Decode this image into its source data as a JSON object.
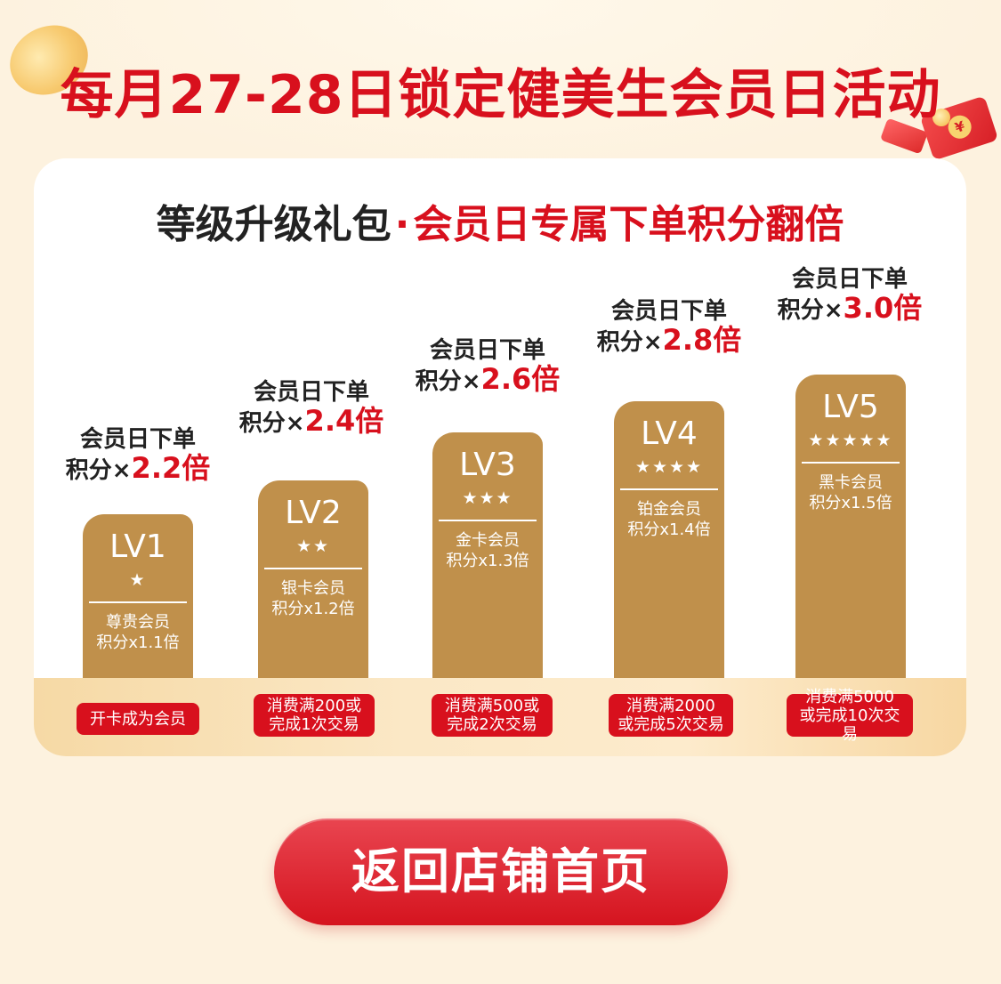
{
  "headline": "每月27-28日锁定健美生会员日活动",
  "card": {
    "title_main": "等级升级礼包",
    "title_sep": "·",
    "title_highlight": "会员日专属下单积分翻倍"
  },
  "levels": [
    {
      "label_line1": "会员日下单",
      "label_prefix": "积分×",
      "label_mult": "2.2倍",
      "lv": "LV1",
      "stars": "★",
      "tier_name": "尊贵会员",
      "tier_points": "积分x1.1倍",
      "requirement": "开卡成为会员"
    },
    {
      "label_line1": "会员日下单",
      "label_prefix": "积分×",
      "label_mult": "2.4倍",
      "lv": "LV2",
      "stars": "★★",
      "tier_name": "银卡会员",
      "tier_points": "积分x1.2倍",
      "requirement": "消费满200或\n完成1次交易"
    },
    {
      "label_line1": "会员日下单",
      "label_prefix": "积分×",
      "label_mult": "2.6倍",
      "lv": "LV3",
      "stars": "★★★",
      "tier_name": "金卡会员",
      "tier_points": "积分x1.3倍",
      "requirement": "消费满500或\n完成2次交易"
    },
    {
      "label_line1": "会员日下单",
      "label_prefix": "积分×",
      "label_mult": "2.8倍",
      "lv": "LV4",
      "stars": "★★★★",
      "tier_name": "铂金会员",
      "tier_points": "积分x1.4倍",
      "requirement": "消费满2000\n或完成5次交易"
    },
    {
      "label_line1": "会员日下单",
      "label_prefix": "积分×",
      "label_mult": "3.0倍",
      "lv": "LV5",
      "stars": "★★★★★",
      "tier_name": "黑卡会员",
      "tier_points": "积分x1.5倍",
      "requirement": "消费满5000\n或完成10次交易"
    }
  ],
  "cta_label": "返回店铺首页",
  "colors": {
    "accent_red": "#d8101d",
    "bar_gold": "#c0904b",
    "background": "#fdf2df"
  }
}
